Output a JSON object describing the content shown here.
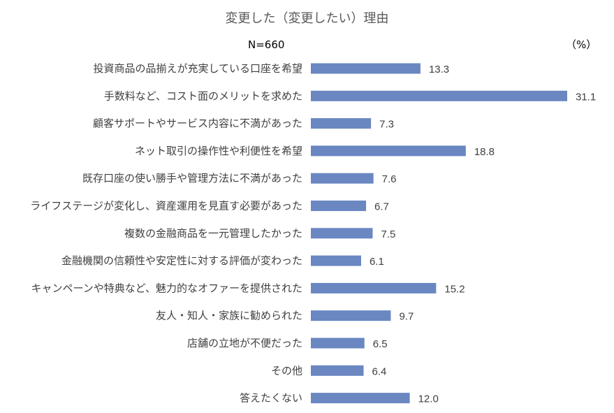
{
  "chart_data": {
    "type": "bar",
    "orientation": "horizontal",
    "title": "変更した（変更したい）理由",
    "sample_size_label": "N=660",
    "unit_label": "（%）",
    "categories": [
      "投資商品の品揃えが充実している口座を希望",
      "手数料など、コスト面のメリットを求めた",
      "顧客サポートやサービス内容に不満があった",
      "ネット取引の操作性や利便性を希望",
      "既存口座の使い勝手や管理方法に不満があった",
      "ライフステージが変化し、資産運用を見直す必要があった",
      "複数の金融商品を一元管理したかった",
      "金融機関の信頼性や安定性に対する評価が変わった",
      "キャンペーンや特典など、魅力的なオファーを提供された",
      "友人・知人・家族に勧められた",
      "店舗の立地が不便だった",
      "その他",
      "答えたくない"
    ],
    "values": [
      13.3,
      31.1,
      7.3,
      18.8,
      7.6,
      6.7,
      7.5,
      6.1,
      15.2,
      9.7,
      6.5,
      6.4,
      12.0
    ],
    "value_labels": [
      "13.3",
      "31.1",
      "7.3",
      "18.8",
      "7.6",
      "6.7",
      "7.5",
      "6.1",
      "15.2",
      "9.7",
      "6.5",
      "6.4",
      "12.0"
    ],
    "bar_color": "#6a87c2",
    "gridlines": false,
    "legend": "none"
  }
}
